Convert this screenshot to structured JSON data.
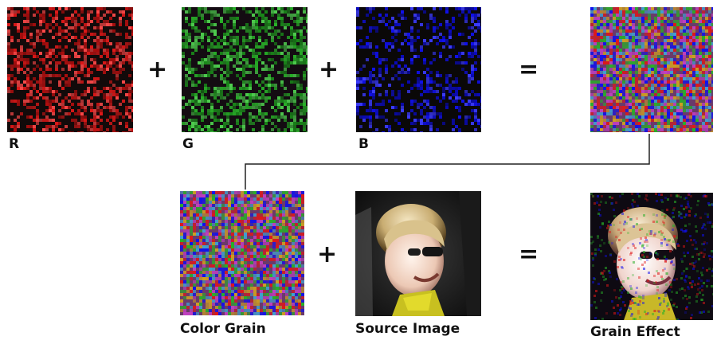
{
  "top_row": [
    {
      "label": "R",
      "channel": "red"
    },
    {
      "label": "G",
      "channel": "green"
    },
    {
      "label": "B",
      "channel": "blue"
    },
    {
      "label": "",
      "channel": "combined"
    }
  ],
  "operators": {
    "plus": "+",
    "equals": "="
  },
  "bottom_row": [
    {
      "label": "Color Grain"
    },
    {
      "label": "Source Image"
    },
    {
      "label": "Grain Effect"
    }
  ],
  "colors": {
    "red": "#e01818",
    "green": "#28b028",
    "blue": "#1010f0",
    "tile_background": "#120a0a",
    "connector_line": "#222222"
  }
}
